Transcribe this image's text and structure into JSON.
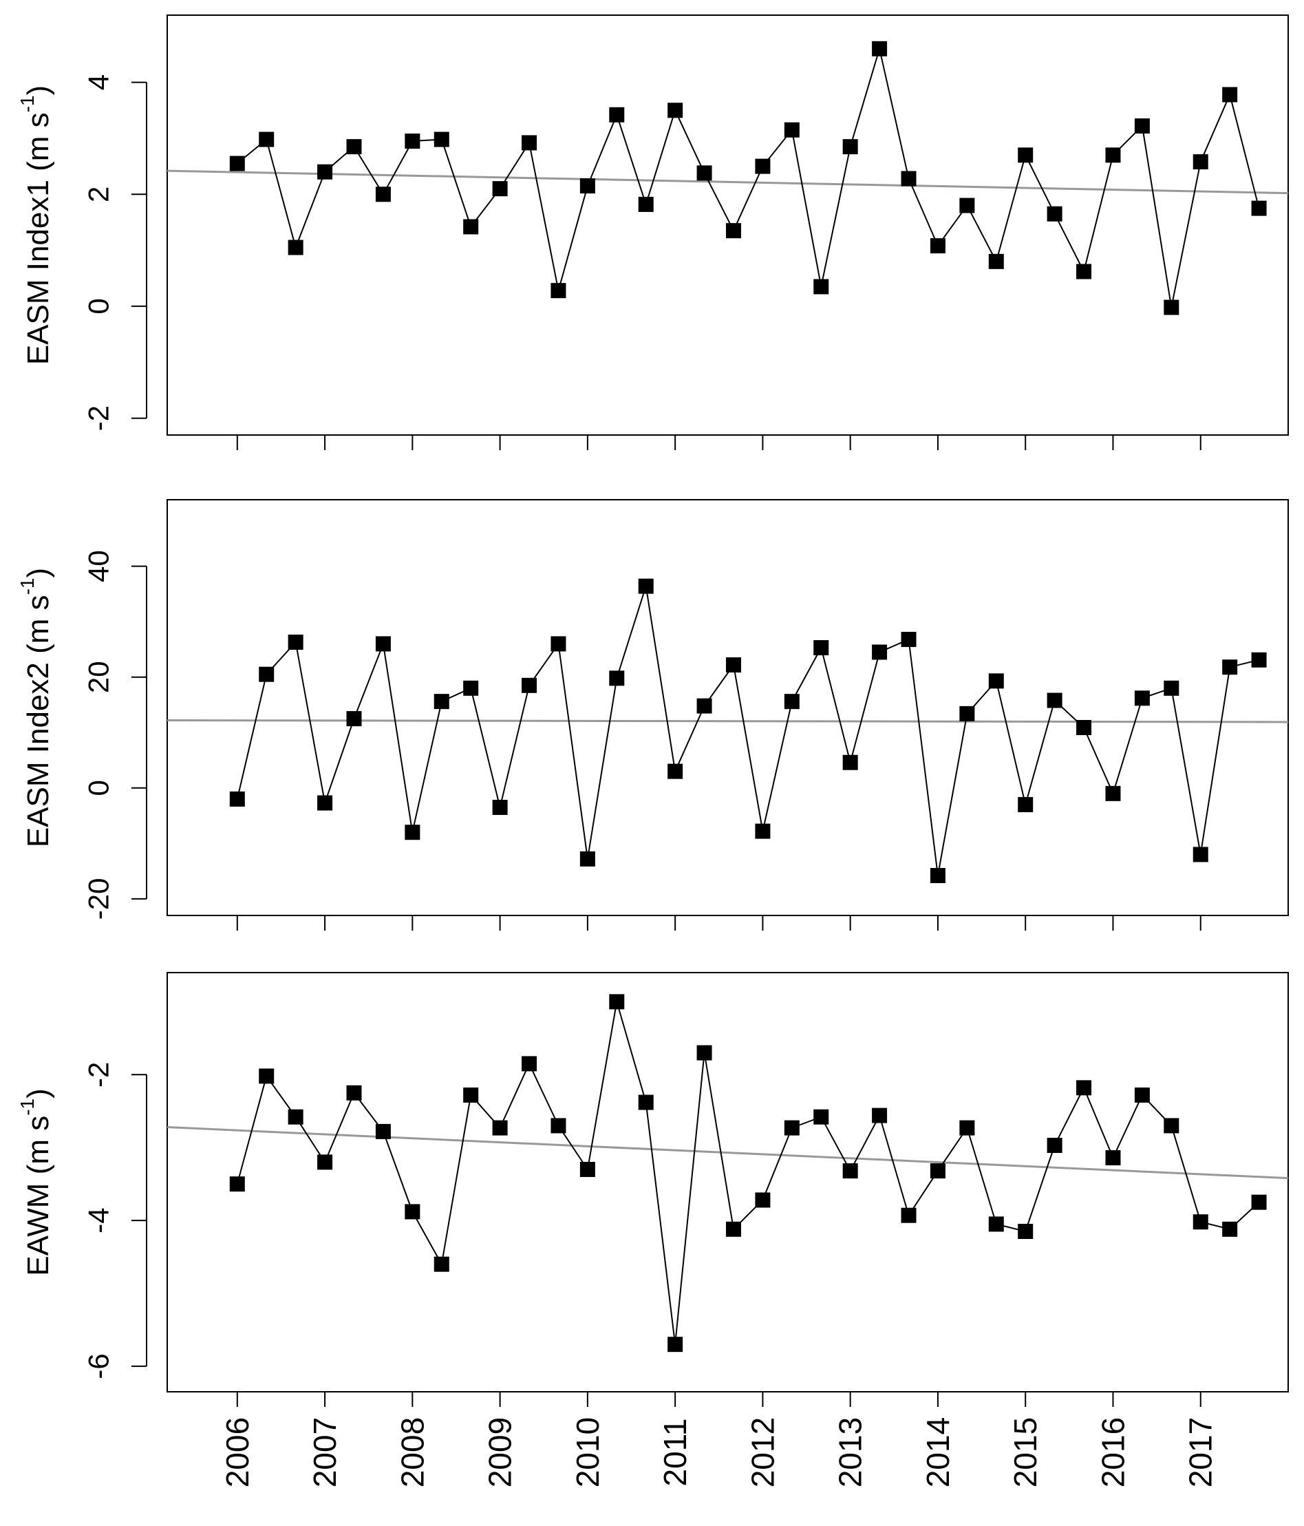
{
  "chart_data": [
    {
      "type": "line",
      "ylabel_main": "EASM Index1 (m s",
      "ylabel_sup": "-1",
      "ylabel_close": ")",
      "ylim": [
        -2.3,
        5.2
      ],
      "yticks": [
        -2,
        0,
        2,
        4
      ],
      "ytick_labels": [
        "-2",
        "0",
        "2",
        "4"
      ],
      "values": [
        2.55,
        2.98,
        1.05,
        2.4,
        2.85,
        2.0,
        2.95,
        2.98,
        1.42,
        2.1,
        2.92,
        0.28,
        2.15,
        3.42,
        1.82,
        3.5,
        2.38,
        1.35,
        2.5,
        3.15,
        0.35,
        2.85,
        4.6,
        2.28,
        1.08,
        1.8,
        0.8,
        2.7,
        1.65,
        0.62,
        2.7,
        3.22,
        -0.02,
        2.58,
        3.78,
        1.75
      ],
      "trend": [
        2.42,
        2.02
      ]
    },
    {
      "type": "line",
      "ylabel_main": "EASM Index2 (m s",
      "ylabel_sup": "-1",
      "ylabel_close": ")",
      "ylim": [
        -23,
        52
      ],
      "yticks": [
        -20,
        0,
        20,
        40
      ],
      "ytick_labels": [
        "-20",
        "0",
        "20",
        "40"
      ],
      "values": [
        -2,
        20.5,
        26.3,
        -2.7,
        12.5,
        26,
        -8,
        15.6,
        18,
        -3.5,
        18.5,
        26,
        -12.8,
        19.8,
        36.4,
        3,
        14.8,
        22.2,
        -7.8,
        15.6,
        25.3,
        4.6,
        24.5,
        26.8,
        -15.8,
        13.4,
        19.3,
        -3,
        15.8,
        10.9,
        -1,
        16.2,
        18,
        -12,
        21.8,
        23.1
      ],
      "trend": [
        12.2,
        11.9
      ]
    },
    {
      "type": "line",
      "ylabel_main": "EAWM (m s",
      "ylabel_sup": "-1",
      "ylabel_close": ")",
      "ylim": [
        -6.35,
        -0.6
      ],
      "yticks": [
        -6,
        -4,
        -2
      ],
      "ytick_labels": [
        "-6",
        "-4",
        "-2"
      ],
      "values": [
        -3.5,
        -2.02,
        -2.58,
        -3.2,
        -2.25,
        -2.78,
        -3.88,
        -4.6,
        -2.28,
        -2.73,
        -1.85,
        -2.7,
        -3.3,
        -1.0,
        -2.38,
        -5.7,
        -1.7,
        -4.12,
        -3.72,
        -2.73,
        -2.58,
        -3.32,
        -2.56,
        -3.93,
        -3.32,
        -2.73,
        -4.05,
        -4.15,
        -2.97,
        -2.18,
        -3.14,
        -2.28,
        -2.7,
        -4.02,
        -4.12,
        -3.75
      ],
      "trend": [
        -2.72,
        -3.42
      ]
    }
  ],
  "x_axis": {
    "years": [
      "2006",
      "2007",
      "2008",
      "2009",
      "2010",
      "2011",
      "2012",
      "2013",
      "2014",
      "2015",
      "2016",
      "2017"
    ],
    "points_per_year": 3,
    "xlim": [
      2005.2,
      2018.0
    ]
  },
  "colors": {
    "line": "#000000",
    "marker": "#000000",
    "trend": "#999999",
    "axis": "#000000"
  }
}
